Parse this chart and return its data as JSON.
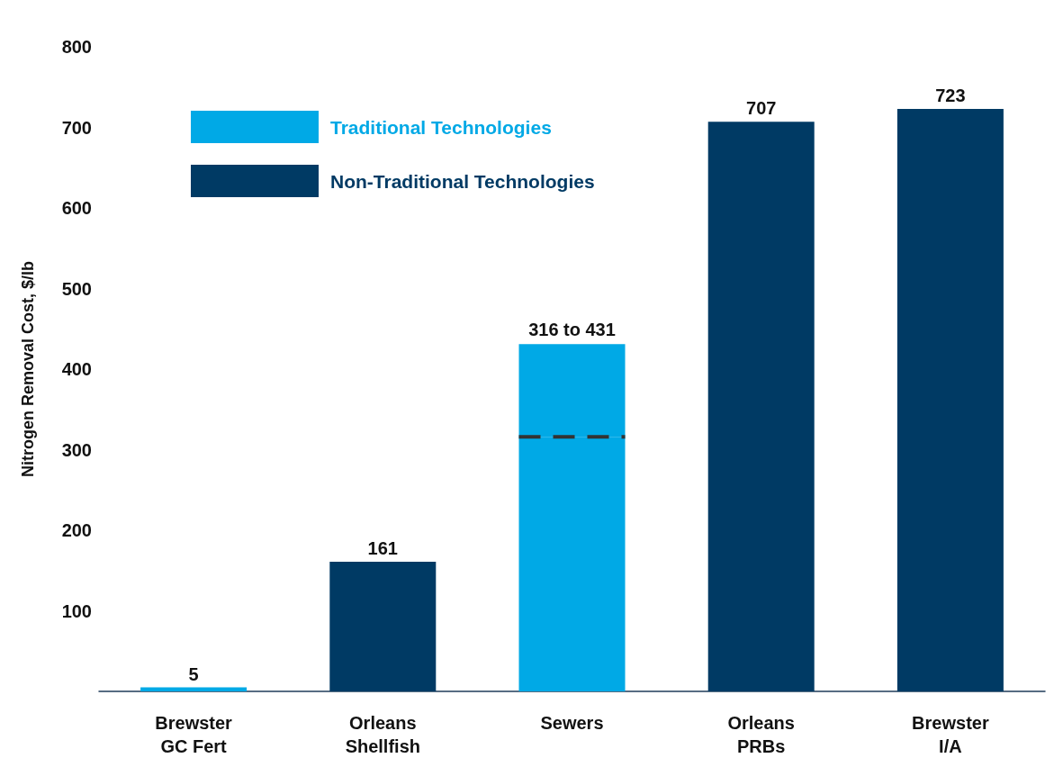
{
  "chart_data": {
    "type": "bar",
    "ylabel": "Nitrogen Removal Cost, $/lb",
    "categories": [
      "Brewster\nGC Fert",
      "Orleans\nShellfish",
      "Sewers",
      "Orleans\nPRBs",
      "Brewster\nI/A"
    ],
    "stacked": true,
    "series": [
      {
        "name": "Traditional Technologies",
        "color": "#00a9e6",
        "values": [
          5,
          null,
          316,
          null,
          null
        ],
        "value_labels": [
          "5",
          null,
          null,
          null,
          null
        ]
      },
      {
        "color": "#00a9e6",
        "values": [
          null,
          null,
          115,
          null,
          null
        ],
        "line_style": "dashed"
      },
      {
        "name": "Non-Traditional Technologies",
        "color": "#003a64",
        "values": [
          null,
          161,
          null,
          707,
          723
        ],
        "value_labels": [
          null,
          "161",
          null,
          "707",
          "723"
        ]
      }
    ],
    "ylim": [
      0,
      800
    ],
    "yticks": [
      100,
      200,
      300,
      400,
      500,
      600,
      700,
      800
    ],
    "annotations": [
      {
        "text": "316 to 431",
        "x": "Sewers",
        "y": 431
      }
    ],
    "grid": false,
    "legend": "top left"
  }
}
